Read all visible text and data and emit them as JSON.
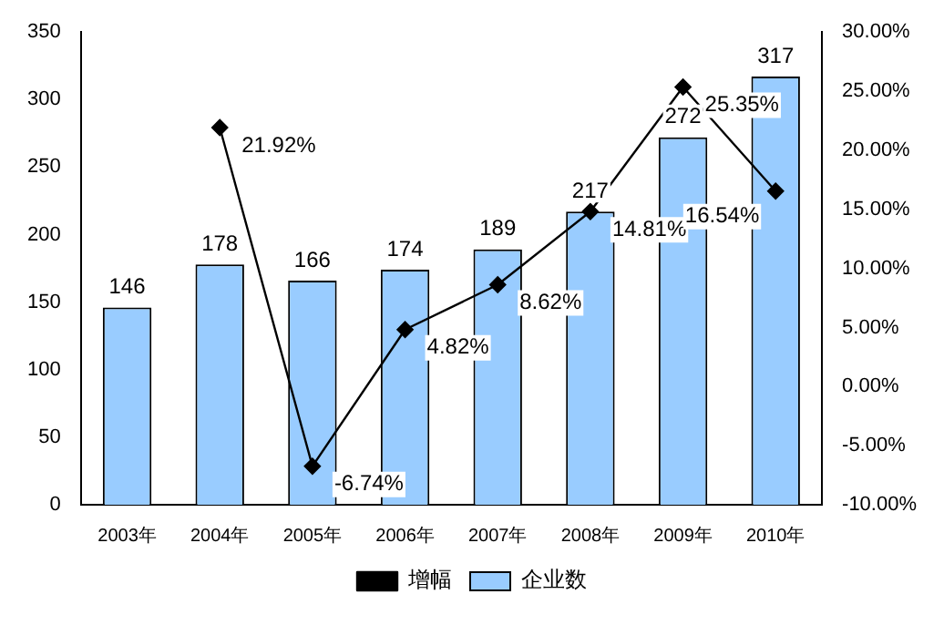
{
  "chart_data": {
    "type": "bar",
    "categories": [
      "2003年",
      "2004年",
      "2005年",
      "2006年",
      "2007年",
      "2008年",
      "2009年",
      "2010年"
    ],
    "series": [
      {
        "name": "企业数",
        "color": "#99ccff",
        "values": [
          146,
          178,
          166,
          174,
          189,
          217,
          272,
          317
        ],
        "value_labels": [
          "146",
          "178",
          "166",
          "174",
          "189",
          "217",
          "272",
          "317"
        ]
      },
      {
        "name": "增幅",
        "type": "line",
        "axis": "y2",
        "color": "#000000",
        "marker": "diamond",
        "values": [
          null,
          21.92,
          -6.74,
          4.82,
          8.62,
          14.81,
          25.35,
          16.54
        ],
        "value_labels": [
          null,
          "21.92%",
          "-6.74%",
          "4.82%",
          "8.62%",
          "14.81%",
          "25.35%",
          "16.54%"
        ]
      }
    ],
    "ylim": [
      0,
      350
    ],
    "yticks": [
      0,
      50,
      100,
      150,
      200,
      250,
      300,
      350
    ],
    "y2lim": [
      -10,
      30
    ],
    "y2ticks": [
      {
        "value": -10,
        "label": "-10.00%"
      },
      {
        "value": -5,
        "label": "-5.00%"
      },
      {
        "value": 0,
        "label": "0.00%"
      },
      {
        "value": 5,
        "label": "5.00%"
      },
      {
        "value": 10,
        "label": "10.00%"
      },
      {
        "value": 15,
        "label": "15.00%"
      },
      {
        "value": 20,
        "label": "20.00%"
      },
      {
        "value": 25,
        "label": "25.00%"
      },
      {
        "value": 30,
        "label": "30.00%"
      }
    ],
    "legend": "bottom",
    "grid": false
  }
}
